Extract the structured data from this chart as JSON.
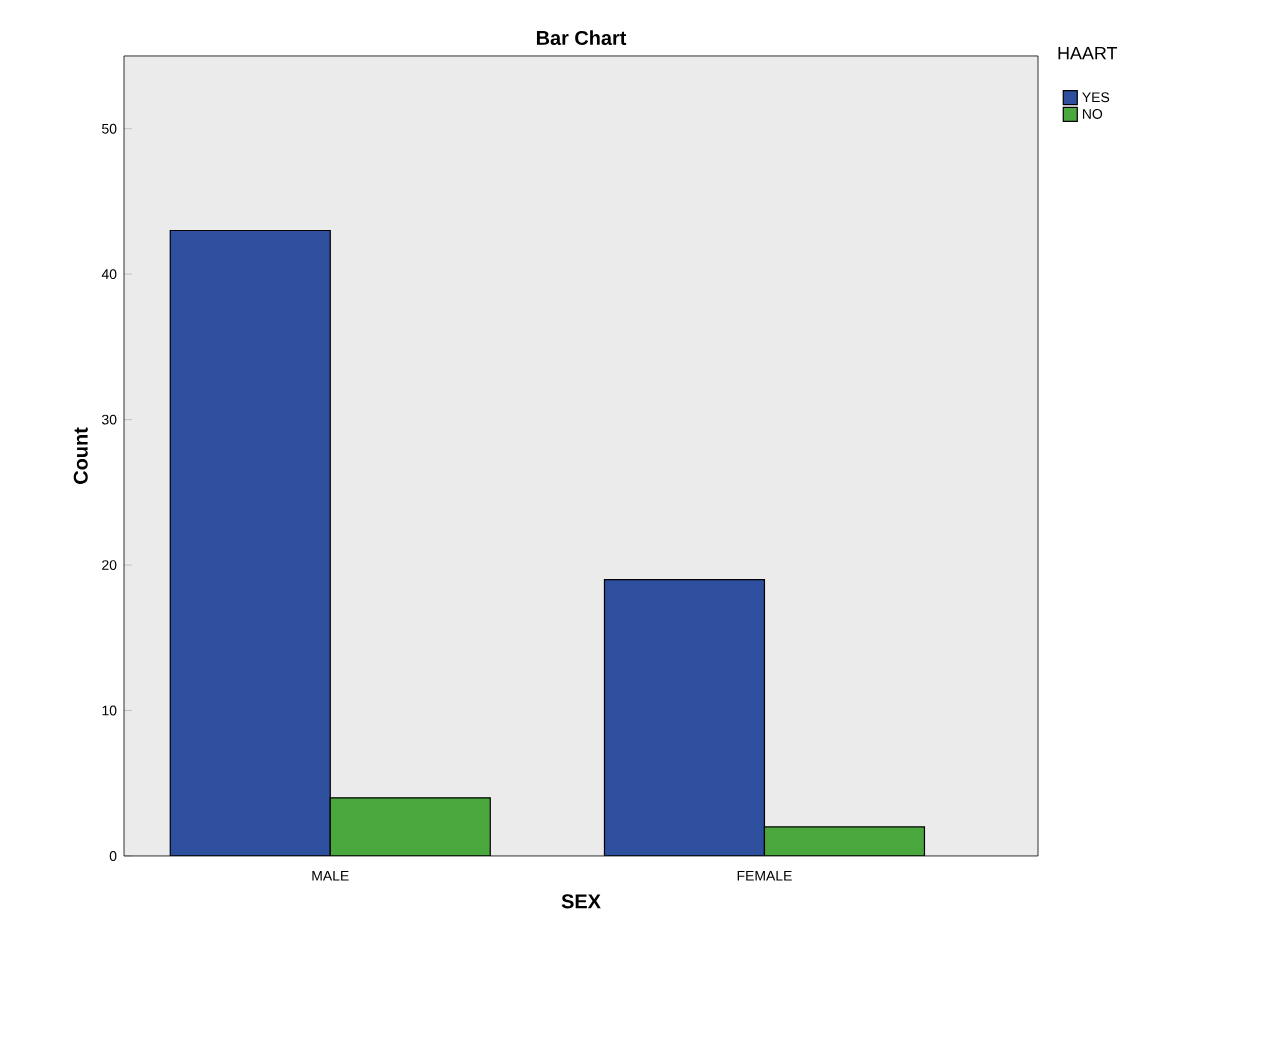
{
  "chart_data": {
    "type": "bar",
    "title": "Bar Chart",
    "xlabel": "SEX",
    "ylabel": "Count",
    "legend_title": "HAART",
    "categories": [
      "MALE",
      "FEMALE"
    ],
    "series": [
      {
        "name": "YES",
        "color": "#2d4f9e",
        "values": [
          43,
          19
        ]
      },
      {
        "name": "NO",
        "color": "#4aa83f",
        "values": [
          4,
          2
        ]
      }
    ],
    "ylim": [
      0,
      55
    ],
    "yticks": [
      0,
      10,
      20,
      30,
      40,
      50
    ],
    "grid": false,
    "legend": "top right"
  }
}
